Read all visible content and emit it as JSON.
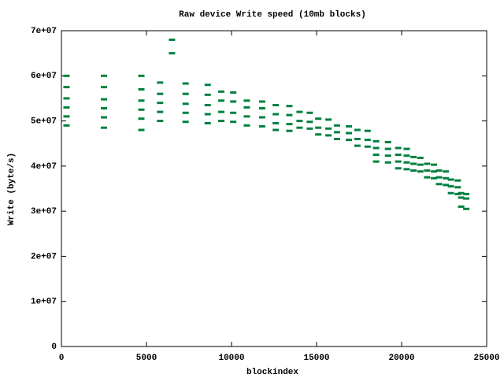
{
  "chart_data": {
    "type": "scatter",
    "title": "Raw device Write speed (10mb blocks)",
    "x_label": "blockindex",
    "y_label": "Write (byte/s)",
    "color": "#008040",
    "xlim": [
      0,
      25000
    ],
    "xticks": [
      0,
      5000,
      10000,
      15000,
      20000,
      25000
    ],
    "ylim": [
      0,
      70000000
    ],
    "yticks": [
      0,
      {
        "value": 10000000,
        "label": "1e+07"
      },
      {
        "value": 20000000,
        "label": "2e+07"
      },
      {
        "value": 30000000,
        "label": "3e+07"
      },
      {
        "value": 40000000,
        "label": "4e+07"
      },
      {
        "value": 50000000,
        "label": "5e+07"
      },
      {
        "value": 60000000,
        "label": "6e+07"
      },
      {
        "value": 70000000,
        "label": "7e+07"
      }
    ],
    "x": [
      300,
      2500,
      4700,
      300,
      2500,
      4700,
      300,
      2500,
      4700,
      300,
      2500,
      4700,
      300,
      2500,
      4700,
      300,
      2500,
      4700,
      5800,
      7300,
      8600,
      5800,
      7300,
      8600,
      5800,
      7300,
      8600,
      5800,
      7300,
      8600,
      5800,
      7300,
      8600,
      9400,
      10100,
      9400,
      10100,
      9400,
      10100,
      9400,
      10100,
      10900,
      11800,
      10900,
      11800,
      10900,
      11800,
      10900,
      11800,
      12600,
      13400,
      12600,
      13400,
      12600,
      13400,
      12600,
      13400,
      14000,
      14600,
      14000,
      14600,
      14000,
      14600,
      15100,
      15700,
      15100,
      15700,
      15100,
      15700,
      16200,
      16900,
      16200,
      16900,
      16200,
      16900,
      17400,
      18000,
      17400,
      18000,
      17400,
      18000,
      18500,
      19200,
      18500,
      19200,
      18500,
      19200,
      18500,
      19200,
      19800,
      20300,
      19800,
      20300,
      19800,
      20300,
      19800,
      20300,
      20700,
      21100,
      20700,
      21100,
      20700,
      21100,
      21500,
      21900,
      21500,
      21900,
      21500,
      21900,
      22200,
      22600,
      22200,
      22600,
      22200,
      22600,
      22900,
      23300,
      22900,
      23300,
      22900,
      23300,
      23500,
      23800,
      23500,
      23800,
      23500,
      23800,
      6500,
      6500
    ],
    "y": [
      60000000,
      60000000,
      60000000,
      57500000,
      57500000,
      57000000,
      55000000,
      54800000,
      54500000,
      53000000,
      52800000,
      52500000,
      51000000,
      50800000,
      50500000,
      49000000,
      48500000,
      48000000,
      58500000,
      58300000,
      58000000,
      56000000,
      56000000,
      55800000,
      54000000,
      53800000,
      53500000,
      52000000,
      51800000,
      51500000,
      50000000,
      49800000,
      49500000,
      56500000,
      56300000,
      54500000,
      54300000,
      52000000,
      51800000,
      50000000,
      49800000,
      54500000,
      54300000,
      53000000,
      52800000,
      51000000,
      50800000,
      49000000,
      48800000,
      53500000,
      53300000,
      51500000,
      51300000,
      49500000,
      49300000,
      48000000,
      47800000,
      52000000,
      51800000,
      50000000,
      49800000,
      48500000,
      48300000,
      50500000,
      50300000,
      48500000,
      48300000,
      47000000,
      46800000,
      49000000,
      48800000,
      47500000,
      47300000,
      46000000,
      45800000,
      48000000,
      47800000,
      46000000,
      45800000,
      44500000,
      44300000,
      45500000,
      45300000,
      44000000,
      43800000,
      42500000,
      42300000,
      41000000,
      40800000,
      44000000,
      43800000,
      42500000,
      42300000,
      41000000,
      40800000,
      39500000,
      39300000,
      42000000,
      41800000,
      40500000,
      40300000,
      39000000,
      38800000,
      40500000,
      40300000,
      39000000,
      38800000,
      37500000,
      37300000,
      39000000,
      38800000,
      37500000,
      37300000,
      36000000,
      35800000,
      37000000,
      36800000,
      35500000,
      35300000,
      34000000,
      33800000,
      34000000,
      33800000,
      33000000,
      32800000,
      31000000,
      30500000,
      68000000,
      65000000
    ]
  }
}
